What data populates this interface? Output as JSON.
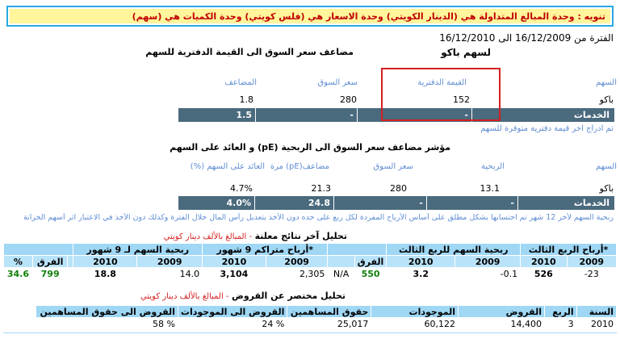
{
  "notice": "تنويه : وحدة المبالغ المتداولة هي (الدينار الكويتي) وحدة الاسعار هي (فلس كويتي) وحدة الكميات هي (سهم)",
  "period_text": "الفترة من 16/12/2009 الى 16/12/2010",
  "stock_label": "لسهم باكو",
  "section1": {
    "title": "مضاعف سعر السوق الى القيمة الدفترية للسهم",
    "headers": {
      "stock": "السهم",
      "book_value": "القيمة الدفترية",
      "market_price": "سعر السوق",
      "multiplier": "المضاعف"
    },
    "row": {
      "stock": "باكو",
      "book_value": "152",
      "market_price": "280",
      "multiplier": "1.8"
    },
    "sector": {
      "name": "الخدمات",
      "book_value": "-",
      "market_price": "-",
      "multiplier": "1.5"
    },
    "note": "تم ادراج اخر قيمة دفترية متوفرة للسهم"
  },
  "section2": {
    "title": "مؤشر مضاعف سعر السوق الى الربحية (pE) و العائد على السهم",
    "headers": {
      "stock": "السهم",
      "profit": "الربحية",
      "market_price": "سعر السوق",
      "pe": "مضاعف(pE) مرة",
      "return": "العائد على السهم (%)"
    },
    "row": {
      "stock": "باكو",
      "profit": "13.1",
      "market_price": "280",
      "pe": "21.3",
      "return": "4.7%"
    },
    "sector": {
      "name": "الخدمات",
      "profit": "-",
      "market_price": "-",
      "pe": "24.8",
      "return": "4.0%"
    },
    "note": "ربحية السهم لأخر 12 شهر تم احتسابها بشكل مطلق على أساس الأرباح المفردة لكل ربع على حده دون الأخذ بتعديل رأس المال خلال الفترة وكذلك دون الأخذ في الاعتبار اثر أسهم الخزانة"
  },
  "section3": {
    "title": "تحليل آخر نتائج معلنة",
    "subtitle": "- المبالغ بالألف دينار كويتي",
    "groups": {
      "q3": "أرباح الربع الثالث*",
      "q3_eps": "ربحية السهم للربع الثالث",
      "nine_months": "أرباح متراكم 9 شهور*",
      "nine_eps": "ربحية السهم لـ 9 شهور"
    },
    "year_2009": "2009",
    "year_2010": "2010",
    "diff": "الفرق",
    "pct": "%",
    "values": {
      "q3_2009": "-23",
      "q3_2010": "526",
      "q3eps_2009": "-0.1",
      "q3eps_2010": "3.2",
      "q3_diff": "550",
      "q3_pct": "N/A",
      "nm_2009": "2,305",
      "nm_2010": "3,104",
      "nmeps_2009": "14.0",
      "nmeps_2010": "18.8",
      "nm_diff": "799",
      "nm_pct": "34.6"
    }
  },
  "section4": {
    "title": "تحليل مختصر عن القروض",
    "subtitle": "- المبالغ بالألف دينار كويتي",
    "headers": [
      "السنة",
      "الربع",
      "القروض",
      "الموجودات",
      "حقوق المساهمين",
      "القروض الى الموجودات",
      "القروض الى حقوق المساهمين"
    ],
    "row": [
      "2010",
      "3",
      "14,400",
      "60,122",
      "25,017",
      "24 %",
      "58 %"
    ]
  },
  "colors": {
    "accent": "#29a8e0",
    "banner": "#fff59a",
    "sector_bar": "#4e6d80",
    "header_blue": "#9fd7f5",
    "highlight": "#d42020",
    "positive": "#10800a"
  }
}
